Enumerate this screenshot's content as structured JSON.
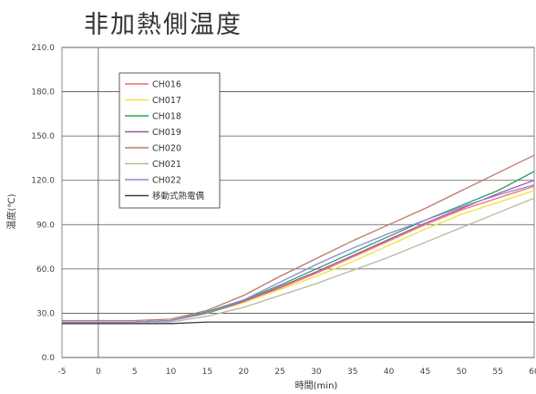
{
  "chart_data": {
    "type": "line",
    "title": "非加熱側温度",
    "xlabel": "時間(min)",
    "ylabel": "温度(℃)",
    "xlim": [
      -5,
      60
    ],
    "ylim": [
      0,
      210
    ],
    "xticks": [
      "-5",
      "0",
      "5",
      "10",
      "15",
      "20",
      "25",
      "30",
      "35",
      "40",
      "45",
      "50",
      "55",
      "60"
    ],
    "yticks": [
      "0.0",
      "30.0",
      "60.0",
      "90.0",
      "120.0",
      "150.0",
      "180.0",
      "210.0"
    ],
    "grid": "horizontal",
    "reference_line_x": 0,
    "legend_position": "top-left",
    "series": [
      {
        "name": "CH016",
        "color": "#f07060",
        "x": [
          -5,
          0,
          5,
          10,
          15,
          20,
          25,
          30,
          35,
          40,
          45,
          50,
          55,
          60
        ],
        "y": [
          24,
          24,
          24,
          25,
          30,
          38,
          47,
          57,
          68,
          79,
          90,
          100,
          108,
          116
        ]
      },
      {
        "name": "CH017",
        "color": "#f4e040",
        "x": [
          -5,
          0,
          5,
          10,
          15,
          20,
          25,
          30,
          35,
          40,
          45,
          50,
          55,
          60
        ],
        "y": [
          24,
          24,
          24,
          25,
          30,
          37,
          46,
          55,
          65,
          76,
          87,
          97,
          105,
          113
        ]
      },
      {
        "name": "CH018",
        "color": "#30a060",
        "x": [
          -5,
          0,
          5,
          10,
          15,
          20,
          25,
          30,
          35,
          40,
          45,
          50,
          55,
          60
        ],
        "y": [
          24,
          24,
          24,
          25,
          31,
          39,
          49,
          60,
          71,
          82,
          93,
          103,
          113,
          126
        ]
      },
      {
        "name": "CH019",
        "color": "#a050a0",
        "x": [
          -5,
          0,
          5,
          10,
          15,
          20,
          25,
          30,
          35,
          40,
          45,
          50,
          55,
          60
        ],
        "y": [
          24,
          24,
          24,
          25,
          30,
          38,
          48,
          58,
          69,
          80,
          91,
          101,
          111,
          120
        ]
      },
      {
        "name": "CH020",
        "color": "#c07868",
        "x": [
          -5,
          0,
          5,
          10,
          15,
          20,
          25,
          30,
          35,
          40,
          45,
          50,
          55,
          60
        ],
        "y": [
          25,
          25,
          25,
          26,
          32,
          42,
          55,
          67,
          79,
          90,
          101,
          113,
          125,
          137
        ]
      },
      {
        "name": "CH021",
        "color": "#b8b8a0",
        "x": [
          -5,
          0,
          5,
          10,
          15,
          20,
          25,
          30,
          35,
          40,
          45,
          50,
          55,
          60
        ],
        "y": [
          23,
          23,
          23,
          24,
          28,
          34,
          42,
          50,
          59,
          68,
          78,
          88,
          98,
          108
        ]
      },
      {
        "name": "CH022",
        "color": "#8888d8",
        "x": [
          -5,
          0,
          5,
          10,
          15,
          20,
          25,
          30,
          35,
          40,
          45,
          50,
          55,
          60
        ],
        "y": [
          24,
          24,
          24,
          25,
          30,
          39,
          51,
          63,
          74,
          84,
          93,
          102,
          110,
          117
        ]
      },
      {
        "name": "移動式熱電偶",
        "color": "#404040",
        "x": [
          -5,
          0,
          5,
          10,
          15,
          20,
          25,
          30,
          35,
          40,
          45,
          50,
          55,
          60
        ],
        "y": [
          23,
          23,
          23,
          23,
          24,
          24,
          24,
          24,
          24,
          24,
          24,
          24,
          24,
          24
        ]
      }
    ]
  }
}
